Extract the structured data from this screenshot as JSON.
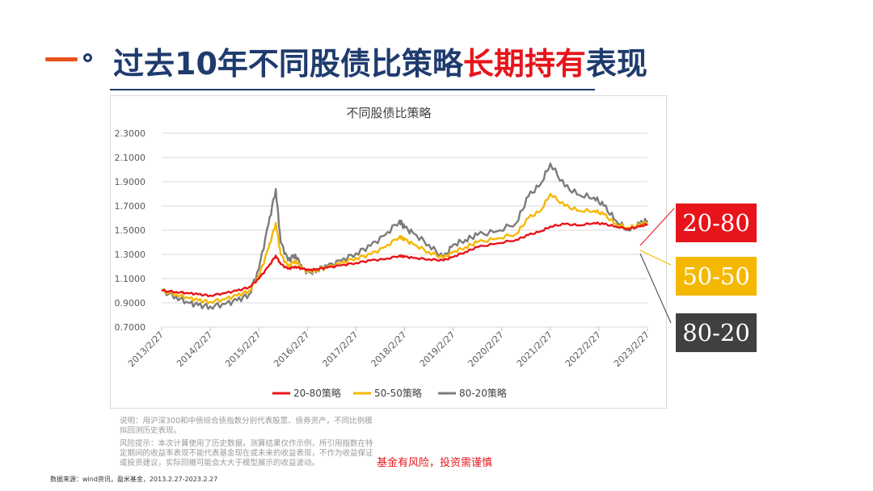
{
  "header": {
    "title_prefix": "过去10年不同股债比策略",
    "title_highlight": "长期持有",
    "title_suffix": "表现"
  },
  "chart_data": {
    "type": "line",
    "title": "不同股债比策略",
    "ylim": [
      0.7,
      2.3
    ],
    "y_ticks": [
      "0.7000",
      "0.9000",
      "1.1000",
      "1.3000",
      "1.5000",
      "1.7000",
      "1.9000",
      "2.1000",
      "2.3000"
    ],
    "x_ticks": [
      "2013/2/27",
      "2014/2/27",
      "2015/2/27",
      "2016/2/27",
      "2017/2/27",
      "2018/2/27",
      "2019/2/27",
      "2020/2/27",
      "2021/2/27",
      "2022/2/27",
      "2023/2/27"
    ],
    "x": [
      0,
      0.3,
      0.55,
      0.75,
      1.0,
      1.3,
      1.55,
      1.8,
      2.0,
      2.2,
      2.35,
      2.45,
      2.6,
      2.75,
      2.9,
      3.05,
      3.2,
      3.4,
      3.7,
      4.0,
      4.3,
      4.6,
      4.9,
      5.0,
      5.2,
      5.5,
      5.8,
      6.0,
      6.25,
      6.5,
      6.9,
      7.3,
      7.55,
      7.8,
      8.0,
      8.3,
      8.6,
      8.9,
      9.1,
      9.35,
      9.6,
      9.85,
      10.0
    ],
    "series": [
      {
        "name": "20-80策略",
        "color": "#e8141b",
        "values": [
          1.0,
          0.99,
          0.98,
          0.97,
          0.96,
          0.98,
          1.0,
          1.03,
          1.1,
          1.2,
          1.29,
          1.22,
          1.18,
          1.2,
          1.18,
          1.17,
          1.18,
          1.19,
          1.21,
          1.23,
          1.25,
          1.26,
          1.29,
          1.28,
          1.27,
          1.26,
          1.25,
          1.28,
          1.32,
          1.36,
          1.39,
          1.42,
          1.46,
          1.49,
          1.53,
          1.55,
          1.54,
          1.56,
          1.55,
          1.53,
          1.51,
          1.53,
          1.55
        ]
      },
      {
        "name": "50-50策略",
        "color": "#f5b800",
        "values": [
          1.0,
          0.97,
          0.94,
          0.92,
          0.91,
          0.93,
          0.96,
          1.0,
          1.12,
          1.35,
          1.56,
          1.3,
          1.2,
          1.25,
          1.18,
          1.16,
          1.18,
          1.19,
          1.23,
          1.27,
          1.3,
          1.36,
          1.45,
          1.42,
          1.38,
          1.32,
          1.27,
          1.32,
          1.36,
          1.4,
          1.43,
          1.47,
          1.6,
          1.66,
          1.8,
          1.7,
          1.66,
          1.66,
          1.63,
          1.55,
          1.52,
          1.54,
          1.56
        ]
      },
      {
        "name": "80-20策略",
        "color": "#7b7b7b",
        "values": [
          1.0,
          0.95,
          0.9,
          0.88,
          0.87,
          0.89,
          0.92,
          0.97,
          1.18,
          1.55,
          1.84,
          1.4,
          1.25,
          1.3,
          1.18,
          1.15,
          1.18,
          1.2,
          1.25,
          1.31,
          1.37,
          1.46,
          1.58,
          1.52,
          1.47,
          1.38,
          1.27,
          1.38,
          1.42,
          1.46,
          1.49,
          1.56,
          1.78,
          1.88,
          2.05,
          1.86,
          1.79,
          1.77,
          1.7,
          1.58,
          1.5,
          1.55,
          1.58
        ]
      }
    ]
  },
  "callouts": [
    {
      "label": "20-80",
      "color": "#e8141b"
    },
    {
      "label": "50-50",
      "color": "#f5b800"
    },
    {
      "label": "80-20",
      "color": "#404040"
    }
  ],
  "notes": {
    "note1": "说明：用沪深300和中债综合债指数分别代表股票、债券资产，不同比例模拟回测历史表现。",
    "note2": "风险提示：本次计算使用了历史数据，测算结果仅作示例，所引用指数在特定期间的收益率表现不能代表基金现在或未来的收益表现，不作为收益保证或投资建议，实际回撤可能会大大于模型展示的收益波动。",
    "warning": "基金有风险，投资需谨慎",
    "source": "数据来源：wind资讯，盈米基金，2013.2.27-2023.2.27"
  }
}
